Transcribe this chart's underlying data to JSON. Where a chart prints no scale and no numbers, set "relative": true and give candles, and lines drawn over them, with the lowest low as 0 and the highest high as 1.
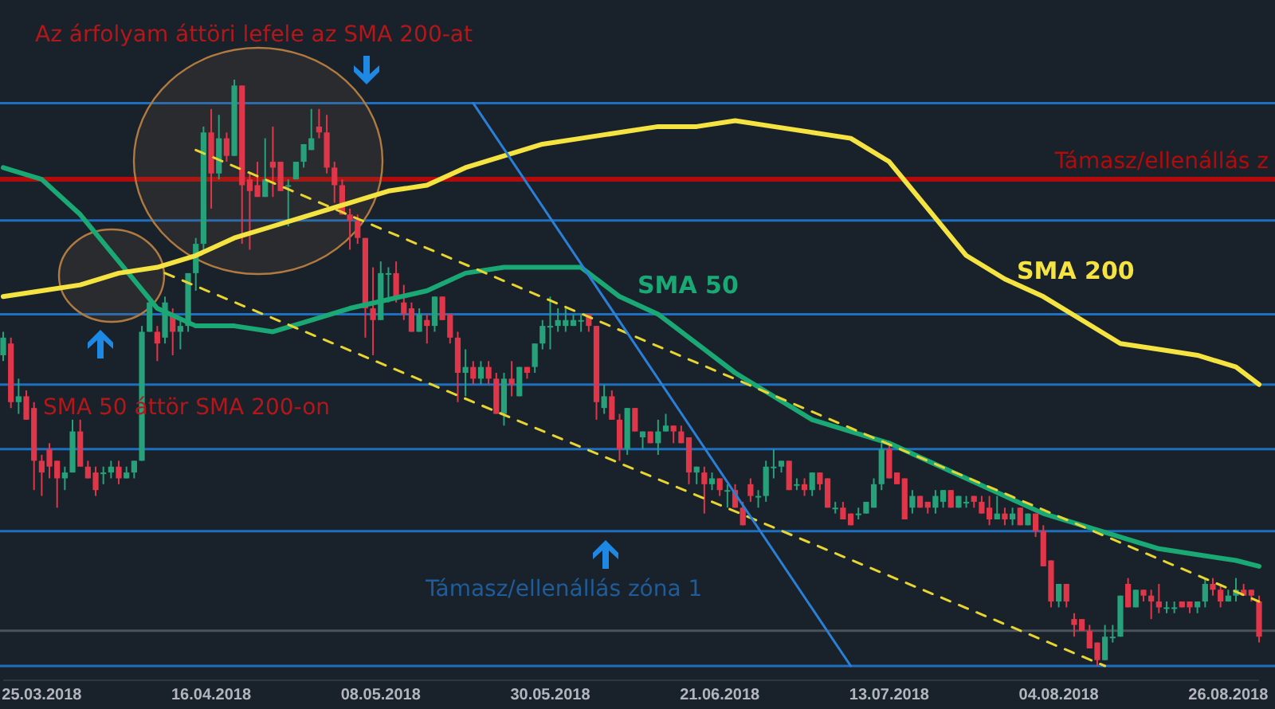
{
  "chart_data": {
    "type": "candlestick",
    "relative": true,
    "xlim": [
      "2018-03-20",
      "2018-08-30"
    ],
    "xticks": [
      {
        "value": "2018-03-25",
        "label": "25.03.2018"
      },
      {
        "value": "2018-04-16",
        "label": "16.04.2018"
      },
      {
        "value": "2018-05-08",
        "label": "08.05.2018"
      },
      {
        "value": "2018-05-30",
        "label": "30.05.2018"
      },
      {
        "value": "2018-06-21",
        "label": "21.06.2018"
      },
      {
        "value": "2018-07-13",
        "label": "13.07.2018"
      },
      {
        "value": "2018-08-04",
        "label": "04.08.2018"
      },
      {
        "value": "2018-08-26",
        "label": "26.08.2018"
      }
    ],
    "x": [
      "2018-03-20",
      "2018-03-21",
      "2018-03-22",
      "2018-03-23",
      "2018-03-24",
      "2018-03-25",
      "2018-03-26",
      "2018-03-27",
      "2018-03-28",
      "2018-03-29",
      "2018-03-30",
      "2018-03-31",
      "2018-04-01",
      "2018-04-02",
      "2018-04-03",
      "2018-04-04",
      "2018-04-05",
      "2018-04-06",
      "2018-04-07",
      "2018-04-08",
      "2018-04-09",
      "2018-04-10",
      "2018-04-11",
      "2018-04-12",
      "2018-04-13",
      "2018-04-14",
      "2018-04-15",
      "2018-04-16",
      "2018-04-17",
      "2018-04-18",
      "2018-04-19",
      "2018-04-20",
      "2018-04-21",
      "2018-04-22",
      "2018-04-23",
      "2018-04-24",
      "2018-04-25",
      "2018-04-26",
      "2018-04-27",
      "2018-04-28",
      "2018-04-29",
      "2018-04-30",
      "2018-05-01",
      "2018-05-02",
      "2018-05-03",
      "2018-05-04",
      "2018-05-05",
      "2018-05-06",
      "2018-05-07",
      "2018-05-08",
      "2018-05-09",
      "2018-05-10",
      "2018-05-11",
      "2018-05-12",
      "2018-05-13",
      "2018-05-14",
      "2018-05-15",
      "2018-05-16",
      "2018-05-17",
      "2018-05-18",
      "2018-05-19",
      "2018-05-20",
      "2018-05-21",
      "2018-05-22",
      "2018-05-23",
      "2018-05-24",
      "2018-05-25",
      "2018-05-26",
      "2018-05-27",
      "2018-05-28",
      "2018-05-29",
      "2018-05-30",
      "2018-05-31",
      "2018-06-01",
      "2018-06-02",
      "2018-06-03",
      "2018-06-04",
      "2018-06-05",
      "2018-06-06",
      "2018-06-07",
      "2018-06-08",
      "2018-06-09",
      "2018-06-10",
      "2018-06-11",
      "2018-06-12",
      "2018-06-13",
      "2018-06-14",
      "2018-06-15",
      "2018-06-16",
      "2018-06-17",
      "2018-06-18",
      "2018-06-19",
      "2018-06-20",
      "2018-06-21",
      "2018-06-22",
      "2018-06-23",
      "2018-06-24",
      "2018-06-25",
      "2018-06-26",
      "2018-06-27",
      "2018-06-28",
      "2018-06-29",
      "2018-06-30",
      "2018-07-01",
      "2018-07-02",
      "2018-07-03",
      "2018-07-04",
      "2018-07-05",
      "2018-07-06",
      "2018-07-07",
      "2018-07-08",
      "2018-07-09",
      "2018-07-10",
      "2018-07-11",
      "2018-07-12",
      "2018-07-13",
      "2018-07-14",
      "2018-07-15",
      "2018-07-16",
      "2018-07-17",
      "2018-07-18",
      "2018-07-19",
      "2018-07-20",
      "2018-07-21",
      "2018-07-22",
      "2018-07-23",
      "2018-07-24",
      "2018-07-25",
      "2018-07-26",
      "2018-07-27",
      "2018-07-28",
      "2018-07-29",
      "2018-07-30",
      "2018-07-31",
      "2018-08-01",
      "2018-08-02",
      "2018-08-03",
      "2018-08-04",
      "2018-08-05",
      "2018-08-06",
      "2018-08-07",
      "2018-08-08",
      "2018-08-09",
      "2018-08-10",
      "2018-08-11",
      "2018-08-12",
      "2018-08-13",
      "2018-08-14",
      "2018-08-15",
      "2018-08-16",
      "2018-08-17",
      "2018-08-18",
      "2018-08-19",
      "2018-08-20",
      "2018-08-21",
      "2018-08-22",
      "2018-08-23",
      "2018-08-24",
      "2018-08-25",
      "2018-08-26",
      "2018-08-27",
      "2018-08-28",
      "2018-08-29",
      "2018-08-30"
    ],
    "ohlc": [
      [
        0.53,
        0.57,
        0.52,
        0.56
      ],
      [
        0.55,
        0.56,
        0.44,
        0.45
      ],
      [
        0.45,
        0.49,
        0.43,
        0.46
      ],
      [
        0.46,
        0.47,
        0.42,
        0.42
      ],
      [
        0.44,
        0.45,
        0.3,
        0.35
      ],
      [
        0.35,
        0.36,
        0.29,
        0.33
      ],
      [
        0.37,
        0.38,
        0.32,
        0.34
      ],
      [
        0.35,
        0.35,
        0.27,
        0.32
      ],
      [
        0.32,
        0.34,
        0.3,
        0.33
      ],
      [
        0.33,
        0.42,
        0.33,
        0.4
      ],
      [
        0.4,
        0.42,
        0.34,
        0.34
      ],
      [
        0.34,
        0.35,
        0.32,
        0.32
      ],
      [
        0.33,
        0.34,
        0.29,
        0.3
      ],
      [
        0.33,
        0.34,
        0.31,
        0.33
      ],
      [
        0.33,
        0.35,
        0.32,
        0.34
      ],
      [
        0.34,
        0.35,
        0.31,
        0.32
      ],
      [
        0.32,
        0.34,
        0.32,
        0.33
      ],
      [
        0.33,
        0.35,
        0.32,
        0.35
      ],
      [
        0.35,
        0.58,
        0.35,
        0.57
      ],
      [
        0.57,
        0.63,
        0.57,
        0.62
      ],
      [
        0.57,
        0.58,
        0.52,
        0.55
      ],
      [
        0.56,
        0.63,
        0.55,
        0.62
      ],
      [
        0.6,
        0.61,
        0.53,
        0.57
      ],
      [
        0.57,
        0.59,
        0.54,
        0.58
      ],
      [
        0.58,
        0.67,
        0.57,
        0.67
      ],
      [
        0.67,
        0.73,
        0.64,
        0.72
      ],
      [
        0.72,
        0.92,
        0.71,
        0.91
      ],
      [
        0.91,
        0.95,
        0.78,
        0.84
      ],
      [
        0.84,
        0.94,
        0.83,
        0.9
      ],
      [
        0.9,
        0.91,
        0.86,
        0.87
      ],
      [
        0.87,
        1,
        0.87,
        0.99
      ],
      [
        0.99,
        0.99,
        0.72,
        0.82
      ],
      [
        0.83,
        0.84,
        0.71,
        0.81
      ],
      [
        0.82,
        0.86,
        0.8,
        0.8
      ],
      [
        0.8,
        0.9,
        0.8,
        0.83
      ],
      [
        0.86,
        0.92,
        0.8,
        0.85
      ],
      [
        0.86,
        0.86,
        0.81,
        0.81
      ],
      [
        0.82,
        0.83,
        0.75,
        0.82
      ],
      [
        0.83,
        0.86,
        0.83,
        0.86
      ],
      [
        0.86,
        0.89,
        0.85,
        0.89
      ],
      [
        0.88,
        0.95,
        0.88,
        0.9
      ],
      [
        0.92,
        0.95,
        0.9,
        0.91
      ],
      [
        0.91,
        0.94,
        0.84,
        0.85
      ],
      [
        0.85,
        0.86,
        0.79,
        0.82
      ],
      [
        0.82,
        0.83,
        0.77,
        0.77
      ],
      [
        0.77,
        0.78,
        0.71,
        0.76
      ],
      [
        0.76,
        0.77,
        0.72,
        0.73
      ],
      [
        0.73,
        0.73,
        0.56,
        0.61
      ],
      [
        0.61,
        0.68,
        0.53,
        0.59
      ],
      [
        0.59,
        0.69,
        0.59,
        0.67
      ],
      [
        0.67,
        0.68,
        0.62,
        0.67
      ],
      [
        0.67,
        0.69,
        0.62,
        0.63
      ],
      [
        0.62,
        0.65,
        0.59,
        0.6
      ],
      [
        0.61,
        0.62,
        0.57,
        0.57
      ],
      [
        0.57,
        0.61,
        0.57,
        0.6
      ],
      [
        0.59,
        0.6,
        0.55,
        0.58
      ],
      [
        0.58,
        0.63,
        0.57,
        0.63
      ],
      [
        0.63,
        0.63,
        0.59,
        0.59
      ],
      [
        0.6,
        0.6,
        0.55,
        0.56
      ],
      [
        0.56,
        0.57,
        0.45,
        0.5
      ],
      [
        0.5,
        0.54,
        0.46,
        0.51
      ],
      [
        0.51,
        0.52,
        0.48,
        0.49
      ],
      [
        0.49,
        0.52,
        0.48,
        0.51
      ],
      [
        0.51,
        0.52,
        0.48,
        0.49
      ],
      [
        0.49,
        0.5,
        0.43,
        0.43
      ],
      [
        0.43,
        0.5,
        0.41,
        0.49
      ],
      [
        0.49,
        0.52,
        0.46,
        0.48
      ],
      [
        0.46,
        0.51,
        0.46,
        0.51
      ],
      [
        0.51,
        0.51,
        0.49,
        0.5
      ],
      [
        0.51,
        0.55,
        0.5,
        0.55
      ],
      [
        0.55,
        0.59,
        0.54,
        0.58
      ],
      [
        0.58,
        0.63,
        0.54,
        0.58
      ],
      [
        0.58,
        0.61,
        0.57,
        0.59
      ],
      [
        0.58,
        0.61,
        0.57,
        0.59
      ],
      [
        0.58,
        0.6,
        0.58,
        0.59
      ],
      [
        0.59,
        0.6,
        0.57,
        0.59
      ],
      [
        0.6,
        0.6,
        0.57,
        0.58
      ],
      [
        0.58,
        0.58,
        0.42,
        0.45
      ],
      [
        0.44,
        0.48,
        0.43,
        0.46
      ],
      [
        0.46,
        0.47,
        0.42,
        0.42
      ],
      [
        0.42,
        0.43,
        0.35,
        0.37
      ],
      [
        0.37,
        0.44,
        0.36,
        0.44
      ],
      [
        0.44,
        0.44,
        0.4,
        0.4
      ],
      [
        0.39,
        0.4,
        0.37,
        0.4
      ],
      [
        0.4,
        0.4,
        0.38,
        0.38
      ],
      [
        0.38,
        0.42,
        0.36,
        0.4
      ],
      [
        0.4,
        0.43,
        0.4,
        0.41
      ],
      [
        0.41,
        0.41,
        0.38,
        0.4
      ],
      [
        0.4,
        0.41,
        0.38,
        0.38
      ],
      [
        0.39,
        0.39,
        0.31,
        0.33
      ],
      [
        0.33,
        0.34,
        0.31,
        0.34
      ],
      [
        0.33,
        0.34,
        0.26,
        0.31
      ],
      [
        0.31,
        0.33,
        0.3,
        0.32
      ],
      [
        0.32,
        0.32,
        0.29,
        0.3
      ],
      [
        0.3,
        0.31,
        0.27,
        0.3
      ],
      [
        0.3,
        0.31,
        0.27,
        0.27
      ],
      [
        0.27,
        0.28,
        0.24,
        0.24
      ],
      [
        0.31,
        0.32,
        0.28,
        0.29
      ],
      [
        0.29,
        0.3,
        0.27,
        0.29
      ],
      [
        0.29,
        0.35,
        0.28,
        0.34
      ],
      [
        0.34,
        0.37,
        0.32,
        0.34
      ],
      [
        0.34,
        0.35,
        0.33,
        0.35
      ],
      [
        0.35,
        0.35,
        0.3,
        0.3
      ],
      [
        0.31,
        0.32,
        0.3,
        0.31
      ],
      [
        0.31,
        0.32,
        0.29,
        0.3
      ],
      [
        0.3,
        0.33,
        0.29,
        0.33
      ],
      [
        0.33,
        0.33,
        0.3,
        0.31
      ],
      [
        0.32,
        0.32,
        0.27,
        0.27
      ],
      [
        0.27,
        0.28,
        0.26,
        0.27
      ],
      [
        0.27,
        0.28,
        0.25,
        0.25
      ],
      [
        0.26,
        0.26,
        0.24,
        0.24
      ],
      [
        0.26,
        0.27,
        0.25,
        0.26
      ],
      [
        0.26,
        0.28,
        0.26,
        0.28
      ],
      [
        0.27,
        0.32,
        0.27,
        0.31
      ],
      [
        0.31,
        0.38,
        0.3,
        0.37
      ],
      [
        0.37,
        0.38,
        0.32,
        0.32
      ],
      [
        0.33,
        0.33,
        0.31,
        0.31
      ],
      [
        0.32,
        0.32,
        0.25,
        0.25
      ],
      [
        0.27,
        0.3,
        0.26,
        0.29
      ],
      [
        0.29,
        0.29,
        0.27,
        0.27
      ],
      [
        0.28,
        0.28,
        0.26,
        0.27
      ],
      [
        0.27,
        0.3,
        0.26,
        0.29
      ],
      [
        0.28,
        0.3,
        0.27,
        0.3
      ],
      [
        0.3,
        0.3,
        0.27,
        0.27
      ],
      [
        0.27,
        0.29,
        0.27,
        0.29
      ],
      [
        0.28,
        0.29,
        0.27,
        0.28
      ],
      [
        0.29,
        0.29,
        0.27,
        0.28
      ],
      [
        0.28,
        0.29,
        0.26,
        0.26
      ],
      [
        0.27,
        0.29,
        0.24,
        0.25
      ],
      [
        0.25,
        0.29,
        0.25,
        0.26
      ],
      [
        0.26,
        0.27,
        0.24,
        0.25
      ],
      [
        0.25,
        0.27,
        0.24,
        0.26
      ],
      [
        0.27,
        0.27,
        0.24,
        0.24
      ],
      [
        0.24,
        0.26,
        0.24,
        0.26
      ],
      [
        0.26,
        0.26,
        0.22,
        0.23
      ],
      [
        0.23,
        0.24,
        0.17,
        0.17
      ],
      [
        0.18,
        0.18,
        0.1,
        0.11
      ],
      [
        0.11,
        0.14,
        0.1,
        0.14
      ],
      [
        0.14,
        0.14,
        0.1,
        0.11
      ],
      [
        0.08,
        0.09,
        0.05,
        0.07
      ],
      [
        0.08,
        0.08,
        0.06,
        0.06
      ],
      [
        0.06,
        0.07,
        0.03,
        0.03
      ],
      [
        0.04,
        0.04,
        0,
        0.01
      ],
      [
        0.01,
        0.07,
        0.01,
        0.05
      ],
      [
        0.05,
        0.07,
        0.04,
        0.05
      ],
      [
        0.05,
        0.12,
        0.05,
        0.12
      ],
      [
        0.14,
        0.15,
        0.1,
        0.1
      ],
      [
        0.1,
        0.13,
        0.1,
        0.13
      ],
      [
        0.13,
        0.13,
        0.11,
        0.12
      ],
      [
        0.12,
        0.13,
        0.08,
        0.11
      ],
      [
        0.11,
        0.14,
        0.09,
        0.1
      ],
      [
        0.1,
        0.11,
        0.09,
        0.1
      ],
      [
        0.1,
        0.11,
        0.09,
        0.1
      ],
      [
        0.11,
        0.11,
        0.1,
        0.1
      ],
      [
        0.11,
        0.11,
        0.09,
        0.1
      ],
      [
        0.1,
        0.11,
        0.09,
        0.11
      ],
      [
        0.11,
        0.15,
        0.1,
        0.14
      ],
      [
        0.14,
        0.15,
        0.12,
        0.13
      ],
      [
        0.13,
        0.14,
        0.1,
        0.11
      ],
      [
        0.11,
        0.13,
        0.11,
        0.12
      ],
      [
        0.12,
        0.15,
        0.11,
        0.13
      ],
      [
        0.13,
        0.14,
        0.12,
        0.12
      ],
      [
        0.13,
        0.13,
        0.11,
        0.12
      ],
      [
        0.11,
        0.12,
        0.04,
        0.05
      ]
    ],
    "series": [
      {
        "type": "line",
        "name": "SMA 50",
        "color": "#1aa874",
        "x": [
          "2018-03-20",
          "2018-03-25",
          "2018-03-30",
          "2018-04-04",
          "2018-04-09",
          "2018-04-14",
          "2018-04-19",
          "2018-04-24",
          "2018-04-29",
          "2018-05-04",
          "2018-05-14",
          "2018-05-19",
          "2018-05-24",
          "2018-05-29",
          "2018-06-03",
          "2018-06-08",
          "2018-06-13",
          "2018-06-18",
          "2018-06-23",
          "2018-06-28",
          "2018-07-03",
          "2018-07-08",
          "2018-07-13",
          "2018-07-18",
          "2018-07-23",
          "2018-07-28",
          "2018-08-02",
          "2018-08-07",
          "2018-08-12",
          "2018-08-17",
          "2018-08-22",
          "2018-08-27",
          "2018-08-30"
        ],
        "values": [
          0.85,
          0.83,
          0.77,
          0.69,
          0.61,
          0.58,
          0.58,
          0.57,
          0.59,
          0.61,
          0.64,
          0.67,
          0.68,
          0.68,
          0.68,
          0.63,
          0.6,
          0.55,
          0.5,
          0.46,
          0.42,
          0.4,
          0.38,
          0.35,
          0.32,
          0.29,
          0.26,
          0.24,
          0.22,
          0.2,
          0.19,
          0.18,
          0.17
        ]
      },
      {
        "type": "line",
        "name": "SMA 200",
        "color": "#f5e342",
        "x": [
          "2018-03-20",
          "2018-03-25",
          "2018-03-30",
          "2018-04-04",
          "2018-04-09",
          "2018-04-14",
          "2018-04-19",
          "2018-04-24",
          "2018-04-29",
          "2018-05-04",
          "2018-05-09",
          "2018-05-14",
          "2018-05-19",
          "2018-05-24",
          "2018-05-29",
          "2018-06-03",
          "2018-06-08",
          "2018-06-13",
          "2018-06-18",
          "2018-06-23",
          "2018-06-28",
          "2018-07-03",
          "2018-07-08",
          "2018-07-13",
          "2018-07-18",
          "2018-07-23",
          "2018-07-28",
          "2018-08-02",
          "2018-08-07",
          "2018-08-12",
          "2018-08-17",
          "2018-08-22",
          "2018-08-27",
          "2018-08-30"
        ],
        "values": [
          0.63,
          0.64,
          0.65,
          0.67,
          0.68,
          0.7,
          0.73,
          0.75,
          0.77,
          0.79,
          0.81,
          0.82,
          0.85,
          0.87,
          0.89,
          0.9,
          0.91,
          0.92,
          0.92,
          0.93,
          0.92,
          0.91,
          0.9,
          0.86,
          0.78,
          0.7,
          0.66,
          0.63,
          0.59,
          0.55,
          0.54,
          0.53,
          0.51,
          0.48
        ]
      },
      {
        "type": "line",
        "color": "#e8d531",
        "line_style": "dashed",
        "x": [
          "2018-04-14",
          "2018-08-30"
        ],
        "values": [
          0.88,
          0.11
        ]
      },
      {
        "type": "line",
        "color": "#e8d531",
        "line_style": "dashed",
        "x": [
          "2018-04-10",
          "2018-08-10"
        ],
        "values": [
          0.67,
          0
        ]
      },
      {
        "type": "line",
        "color": "#2a7fd6",
        "line_style": "solid",
        "x": [
          "2018-05-20",
          "2018-07-08"
        ],
        "values": [
          0.96,
          0
        ]
      }
    ],
    "ref_lines": [
      {
        "axis": "y",
        "value": 0.83,
        "label": "Támasz/ellenállás z",
        "color": "#b30b0b"
      },
      {
        "axis": "y",
        "value": 0.96,
        "color": "#1e6fc0"
      },
      {
        "axis": "y",
        "value": 0.76,
        "color": "#1e6fc0"
      },
      {
        "axis": "y",
        "value": 0.6,
        "color": "#1e6fc0"
      },
      {
        "axis": "y",
        "value": 0.48,
        "color": "#1e6fc0"
      },
      {
        "axis": "y",
        "value": 0.37,
        "color": "#1e6fc0"
      },
      {
        "axis": "y",
        "value": 0.23,
        "color": "#1e6fc0"
      },
      {
        "axis": "y",
        "value": 0,
        "color": "#1e6fc0"
      },
      {
        "axis": "y",
        "value": 0.06,
        "color": "#4a525a"
      }
    ],
    "annotations": [
      "Az árfolyam áttöri lefele az SMA 200-at",
      "SMA 50 áttör SMA 200-on",
      "Támasz/ellenállás zóna 1"
    ]
  }
}
